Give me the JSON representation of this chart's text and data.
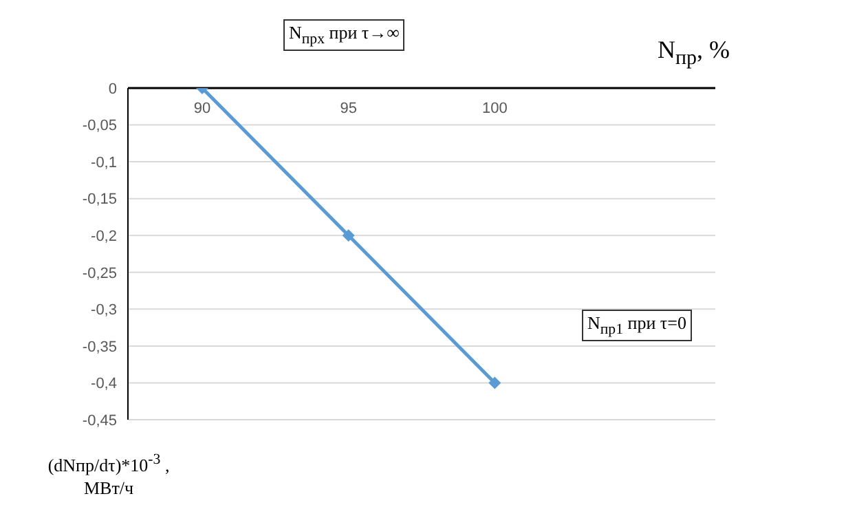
{
  "chart_data": {
    "type": "line",
    "xlabel": "N$_{пр}$, %",
    "ylabel": "(dNпр/dτ)*10$^{-3}$ ,\nМВт/ч",
    "categories": [
      "90",
      "95",
      "100",
      null
    ],
    "series": [
      {
        "color": "#5b9bd5",
        "values": [
          0,
          -0.2,
          -0.4,
          null
        ]
      }
    ],
    "ylim": [
      -0.45,
      0
    ],
    "yticks": [
      0,
      {
        "value": -0.05,
        "label": "-0,05"
      },
      {
        "value": -0.1,
        "label": "-0,1"
      },
      {
        "value": -0.15,
        "label": "-0,15"
      },
      {
        "value": -0.2,
        "label": "-0,2"
      },
      {
        "value": -0.25,
        "label": "-0,25"
      },
      {
        "value": -0.3,
        "label": "-0,3"
      },
      {
        "value": -0.35,
        "label": "-0,35"
      },
      {
        "value": -0.4,
        "label": "-0,4"
      },
      {
        "value": -0.45,
        "label": "-0,45"
      }
    ],
    "grid": "y",
    "marker": "diamond",
    "line_style": "solid",
    "annotations": [
      "N$_{прх}$ при τ→∞",
      "N$_{пр1}$ при τ=0"
    ]
  }
}
